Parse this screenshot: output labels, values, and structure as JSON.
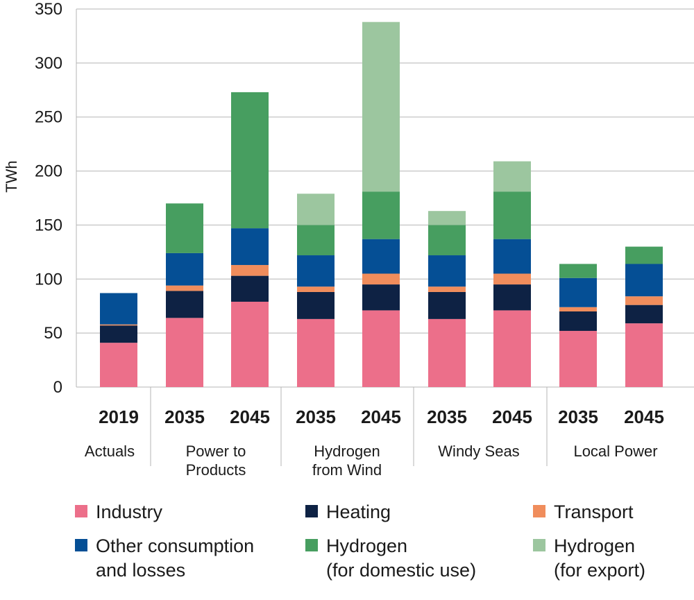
{
  "chart_data": {
    "type": "bar",
    "stacked": true,
    "ylabel": "TWh",
    "ylim": [
      0,
      350
    ],
    "yticks": [
      0,
      50,
      100,
      150,
      200,
      250,
      300,
      350
    ],
    "grid": "horizontal",
    "legend_position": "bottom",
    "groups": [
      {
        "label": [
          "Actuals"
        ],
        "bars": [
          "2019"
        ]
      },
      {
        "label": [
          "Power to",
          "Products"
        ],
        "bars": [
          "2035",
          "2045"
        ]
      },
      {
        "label": [
          "Hydrogen",
          "from Wind"
        ],
        "bars": [
          "2035",
          "2045"
        ]
      },
      {
        "label": [
          "Windy Seas"
        ],
        "bars": [
          "2035",
          "2045"
        ]
      },
      {
        "label": [
          "Local Power"
        ],
        "bars": [
          "2035",
          "2045"
        ]
      }
    ],
    "categories": [
      "2019",
      "2035",
      "2045",
      "2035",
      "2045",
      "2035",
      "2045",
      "2035",
      "2045"
    ],
    "series": [
      {
        "name": "Industry",
        "legend_lines": [
          "Industry"
        ],
        "color": "#ec6f8a",
        "values": [
          41,
          64,
          79,
          63,
          71,
          63,
          71,
          52,
          59
        ]
      },
      {
        "name": "Heating",
        "legend_lines": [
          "Heating"
        ],
        "color": "#0e2244",
        "values": [
          16,
          25,
          24,
          25,
          24,
          25,
          24,
          18,
          17
        ]
      },
      {
        "name": "Transport",
        "legend_lines": [
          "Transport"
        ],
        "color": "#f08d5c",
        "values": [
          1,
          5,
          10,
          5,
          10,
          5,
          10,
          4,
          8
        ]
      },
      {
        "name": "Other consumption and losses",
        "legend_lines": [
          "Other consumption",
          "and losses"
        ],
        "color": "#054f95",
        "values": [
          29,
          30,
          34,
          29,
          32,
          29,
          32,
          27,
          30
        ]
      },
      {
        "name": "Hydrogen (for domestic use)",
        "legend_lines": [
          "Hydrogen",
          "(for domestic use)"
        ],
        "color": "#479e60",
        "values": [
          0,
          46,
          126,
          28,
          44,
          28,
          44,
          13,
          16
        ]
      },
      {
        "name": "Hydrogen (for export)",
        "legend_lines": [
          "Hydrogen",
          "(for export)"
        ],
        "color": "#9cc69f",
        "values": [
          0,
          0,
          0,
          29,
          157,
          13,
          28,
          0,
          0
        ]
      }
    ]
  }
}
